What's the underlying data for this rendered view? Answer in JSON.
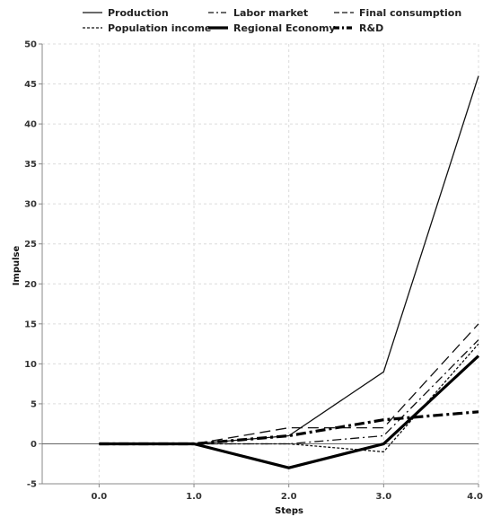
{
  "chart_data": {
    "type": "line",
    "xlabel": "Steps",
    "ylabel": "Impulse",
    "x": [
      0,
      1,
      2,
      3,
      4
    ],
    "x_tick_labels": [
      "0.0",
      "1.0",
      "2.0",
      "3.0",
      "4.0"
    ],
    "y_tick_labels": [
      "-5",
      "0",
      "5",
      "10",
      "15",
      "20",
      "25",
      "30",
      "35",
      "40",
      "45",
      "50"
    ],
    "xlim": [
      -0.6,
      4.0
    ],
    "ylim": [
      -5,
      50
    ],
    "grid": true,
    "legend_position": "top",
    "series": [
      {
        "name": "Production",
        "values": [
          0,
          0,
          1,
          9,
          46
        ],
        "style": "solid",
        "width": "thin",
        "color": "#111111"
      },
      {
        "name": "Labor market",
        "values": [
          0,
          0,
          0,
          1,
          13
        ],
        "style": "dashdot",
        "width": "thin",
        "color": "#111111"
      },
      {
        "name": "Final consumption",
        "values": [
          0,
          0,
          2,
          2,
          15
        ],
        "style": "dashed",
        "width": "thin",
        "color": "#111111"
      },
      {
        "name": "Population income",
        "values": [
          0,
          0,
          0,
          -1,
          12.5
        ],
        "style": "dotted",
        "width": "thin",
        "color": "#111111"
      },
      {
        "name": "Regional Economy",
        "values": [
          0,
          0,
          -3,
          0,
          11
        ],
        "style": "solid",
        "width": "thick",
        "color": "#000000"
      },
      {
        "name": "R&D",
        "values": [
          0,
          0,
          1,
          3,
          4
        ],
        "style": "dashdot",
        "width": "thick",
        "color": "#000000"
      }
    ]
  }
}
